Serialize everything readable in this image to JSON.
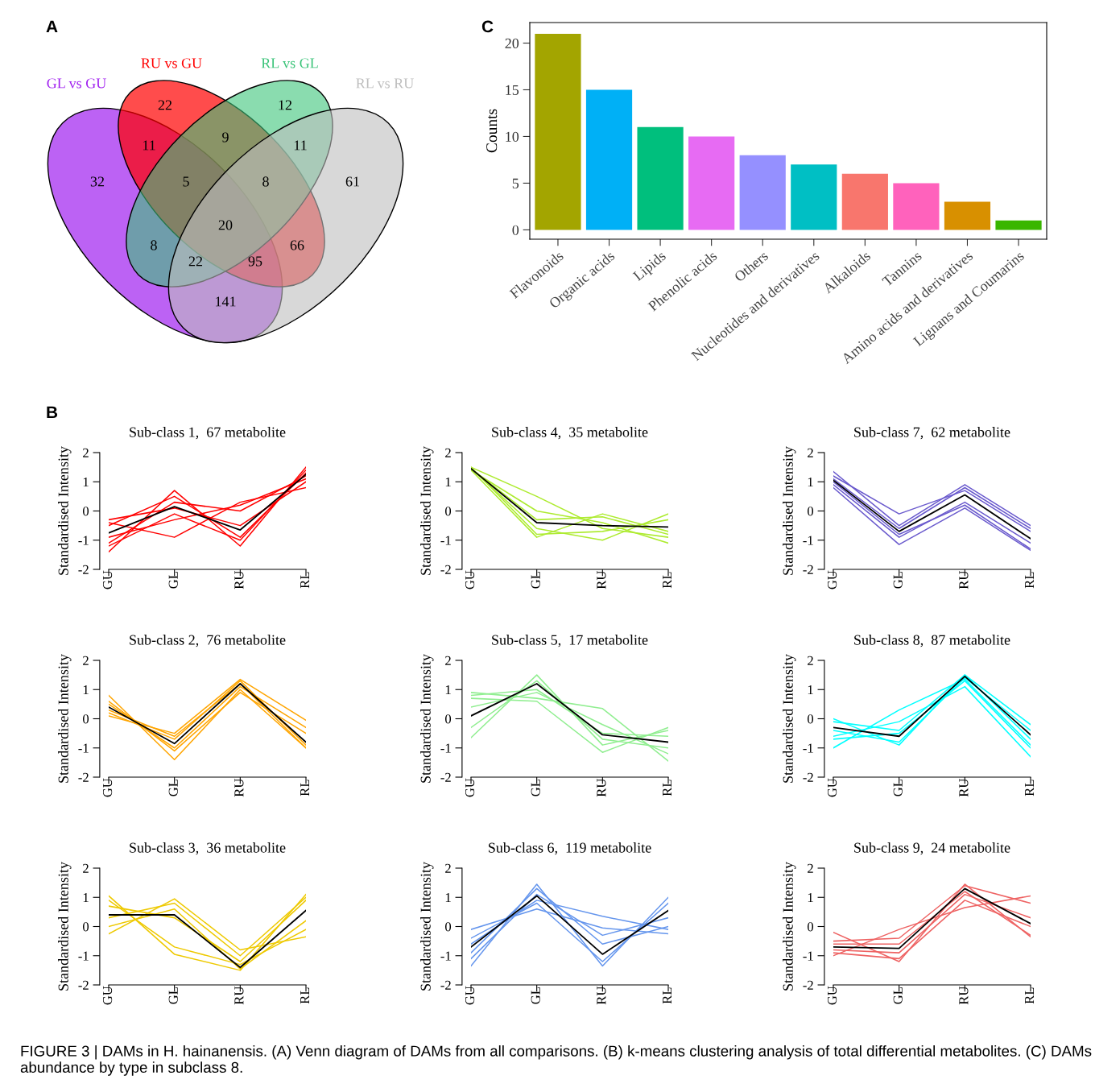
{
  "chart_data": [
    {
      "type": "other",
      "series": [
        {
          "name": "GL vs GU",
          "color": "#a020f0"
        },
        {
          "name": "RU vs GU",
          "color": "#ff0000"
        },
        {
          "name": "RL vs GL",
          "color": "#3cc47a"
        },
        {
          "name": "RL vs RU",
          "color": "#bebebe"
        }
      ],
      "annotations": [
        "A",
        "32",
        "22",
        "12",
        "61",
        "11",
        "9",
        "11",
        "5",
        "8",
        "20",
        "8",
        "66",
        "22",
        "95",
        "141",
        "FIGURE 3 | DAMs in H. hainanensis. (A) Venn diagram of DAMs from all comparisons. (B) k-means clustering analysis of total differential metabolites. (C) DAMs abundance by type in subclass 8."
      ]
    },
    {
      "type": "bar",
      "ylabel": "Counts",
      "annotations": [
        "C"
      ],
      "categories": [
        "Flavonoids",
        "Organic acids",
        "Lipids",
        "Phenolic acids",
        "Others",
        "Nucleotides and derivatives",
        "Alkaloids",
        "Tannins",
        "Amino acids and derivatives",
        "Lignans and Coumarins"
      ],
      "values": [
        21,
        15,
        11,
        10,
        8,
        7,
        6,
        5,
        3,
        1
      ],
      "colors": [
        "#a3a500",
        "#00b0f6",
        "#00bf7d",
        "#e76bf3",
        "#9590ff",
        "#00bfc4",
        "#f8766d",
        "#ff62bc",
        "#d89000",
        "#39b600"
      ],
      "ylim": [
        -1,
        22.2
      ],
      "yticks": [
        0,
        5,
        10,
        15,
        20
      ],
      "grid": false
    },
    {
      "type": "line",
      "title": "Sub-class 1,  67 metabolite",
      "ylabel": "Standardised Intensity",
      "annotations": [
        "B"
      ],
      "categories": [
        "GU",
        "GL",
        "RU",
        "RL"
      ],
      "ylim": [
        -2,
        2
      ],
      "yticks": [
        -2,
        -1,
        0,
        1,
        2
      ],
      "marker": "none",
      "series": [
        {
          "color": "#ff0000",
          "values": [
            -1.4,
            0.7,
            -1.2,
            1.5
          ]
        },
        {
          "color": "#ff0000",
          "values": [
            -0.4,
            -0.9,
            0.3,
            0.8
          ]
        },
        {
          "color": "#ff0000",
          "values": [
            -1.1,
            0.3,
            0.0,
            1.2
          ]
        },
        {
          "color": "#ff0000",
          "values": [
            -0.5,
            0.5,
            -0.9,
            1.3
          ]
        },
        {
          "color": "#ff0000",
          "values": [
            -0.9,
            -0.3,
            0.2,
            1.1
          ]
        },
        {
          "color": "#ff0000",
          "values": [
            -0.3,
            0.1,
            -0.5,
            1.0
          ]
        },
        {
          "color": "#ff0000",
          "values": [
            -1.2,
            -0.1,
            -1.0,
            1.4
          ]
        },
        {
          "color": "#000000",
          "values": [
            -0.75,
            0.15,
            -0.65,
            1.25
          ]
        }
      ]
    },
    {
      "type": "line",
      "title": "Sub-class 4,  35 metabolite",
      "ylabel": "Standardised Intensity",
      "categories": [
        "GU",
        "GL",
        "RU",
        "RL"
      ],
      "ylim": [
        -2,
        2
      ],
      "yticks": [
        -2,
        -1,
        0,
        1,
        2
      ],
      "marker": "none",
      "series": [
        {
          "color": "#adeb2f",
          "values": [
            1.5,
            0.5,
            -0.6,
            -0.9
          ]
        },
        {
          "color": "#adeb2f",
          "values": [
            1.4,
            -0.9,
            -0.1,
            -0.7
          ]
        },
        {
          "color": "#adeb2f",
          "values": [
            1.45,
            -0.6,
            -1.0,
            -0.1
          ]
        },
        {
          "color": "#adeb2f",
          "values": [
            1.4,
            0.0,
            -0.4,
            -1.1
          ]
        },
        {
          "color": "#adeb2f",
          "values": [
            1.5,
            -0.8,
            -0.7,
            -0.3
          ]
        },
        {
          "color": "#adeb2f",
          "values": [
            1.45,
            -0.3,
            -0.2,
            -0.8
          ]
        },
        {
          "color": "#000000",
          "values": [
            1.45,
            -0.4,
            -0.5,
            -0.55
          ]
        }
      ]
    },
    {
      "type": "line",
      "title": "Sub-class 7,  62 metabolite",
      "ylabel": "Standardised Intensity",
      "categories": [
        "GU",
        "GL",
        "RU",
        "RL"
      ],
      "ylim": [
        -2,
        2
      ],
      "yticks": [
        -2,
        -1,
        0,
        1,
        2
      ],
      "marker": "none",
      "series": [
        {
          "color": "#6a5acd",
          "values": [
            1.35,
            -0.5,
            0.9,
            -0.5
          ]
        },
        {
          "color": "#6a5acd",
          "values": [
            0.8,
            -1.15,
            0.1,
            -1.35
          ]
        },
        {
          "color": "#6a5acd",
          "values": [
            1.2,
            -0.1,
            0.7,
            -0.7
          ]
        },
        {
          "color": "#6a5acd",
          "values": [
            0.9,
            -0.9,
            0.3,
            -1.1
          ]
        },
        {
          "color": "#6a5acd",
          "values": [
            1.1,
            -0.6,
            0.8,
            -0.6
          ]
        },
        {
          "color": "#6a5acd",
          "values": [
            1.0,
            -0.8,
            0.2,
            -1.3
          ]
        },
        {
          "color": "#000000",
          "values": [
            1.05,
            -0.7,
            0.55,
            -0.95
          ]
        }
      ]
    },
    {
      "type": "line",
      "title": "Sub-class 2,  76 metabolite",
      "ylabel": "Standardised Intensity",
      "categories": [
        "GU",
        "GL",
        "RU",
        "RL"
      ],
      "ylim": [
        -2,
        2
      ],
      "yticks": [
        -2,
        -1,
        0,
        1,
        2
      ],
      "marker": "none",
      "series": [
        {
          "color": "#ffa500",
          "values": [
            0.8,
            -1.4,
            1.0,
            -1.0
          ]
        },
        {
          "color": "#ffa500",
          "values": [
            0.1,
            -0.5,
            1.35,
            -0.05
          ]
        },
        {
          "color": "#ffa500",
          "values": [
            0.6,
            -1.1,
            0.9,
            -0.5
          ]
        },
        {
          "color": "#ffa500",
          "values": [
            0.2,
            -0.7,
            1.3,
            -0.9
          ]
        },
        {
          "color": "#ffa500",
          "values": [
            0.5,
            -1.0,
            1.1,
            -0.3
          ]
        },
        {
          "color": "#ffa500",
          "values": [
            0.3,
            -0.6,
            1.2,
            -1.0
          ]
        },
        {
          "color": "#000000",
          "values": [
            0.4,
            -0.85,
            1.2,
            -0.8
          ]
        }
      ]
    },
    {
      "type": "line",
      "title": "Sub-class 5,  17 metabolite",
      "ylabel": "Standardised Intensity",
      "categories": [
        "GU",
        "GL",
        "RU",
        "RL"
      ],
      "ylim": [
        -2,
        2
      ],
      "yticks": [
        -2,
        -1,
        0,
        1,
        2
      ],
      "marker": "none",
      "series": [
        {
          "color": "#90ee90",
          "values": [
            0.9,
            0.7,
            0.35,
            -1.45
          ]
        },
        {
          "color": "#90ee90",
          "values": [
            -0.65,
            1.5,
            -0.9,
            -0.4
          ]
        },
        {
          "color": "#90ee90",
          "values": [
            0.7,
            0.6,
            -1.15,
            -0.3
          ]
        },
        {
          "color": "#90ee90",
          "values": [
            0.4,
            0.9,
            -0.2,
            -1.2
          ]
        },
        {
          "color": "#90ee90",
          "values": [
            -0.3,
            1.3,
            -0.7,
            -1.0
          ]
        },
        {
          "color": "#90ee90",
          "values": [
            0.8,
            1.0,
            -0.5,
            -0.6
          ]
        },
        {
          "color": "#000000",
          "values": [
            0.1,
            1.2,
            -0.55,
            -0.8
          ]
        }
      ]
    },
    {
      "type": "line",
      "title": "Sub-class 8,  87 metabolite",
      "ylabel": "Standardised Intensity",
      "categories": [
        "GU",
        "GL",
        "RU",
        "RL"
      ],
      "ylim": [
        -2,
        2
      ],
      "yticks": [
        -2,
        -1,
        0,
        1,
        2
      ],
      "marker": "none",
      "series": [
        {
          "color": "#00ffff",
          "values": [
            -1.0,
            0.3,
            1.35,
            -0.9
          ]
        },
        {
          "color": "#00ffff",
          "values": [
            0.0,
            -0.9,
            1.5,
            -0.2
          ]
        },
        {
          "color": "#00ffff",
          "values": [
            -0.6,
            -0.1,
            1.1,
            -1.3
          ]
        },
        {
          "color": "#00ffff",
          "values": [
            -0.4,
            -0.8,
            1.4,
            -0.4
          ]
        },
        {
          "color": "#00ffff",
          "values": [
            -0.1,
            -0.4,
            1.5,
            -0.7
          ]
        },
        {
          "color": "#00ffff",
          "values": [
            -0.7,
            -0.5,
            1.3,
            -1.0
          ]
        },
        {
          "color": "#000000",
          "values": [
            -0.3,
            -0.6,
            1.45,
            -0.55
          ]
        }
      ]
    },
    {
      "type": "line",
      "title": "Sub-class 3,  36 metabolite",
      "ylabel": "Standardised Intensity",
      "categories": [
        "GU",
        "GL",
        "RU",
        "RL"
      ],
      "ylim": [
        -2,
        2
      ],
      "yticks": [
        -2,
        -1,
        0,
        1,
        2
      ],
      "marker": "none",
      "series": [
        {
          "color": "#eec900",
          "values": [
            1.05,
            -0.95,
            -1.5,
            1.1
          ]
        },
        {
          "color": "#eec900",
          "values": [
            -0.25,
            0.95,
            -0.8,
            -0.35
          ]
        },
        {
          "color": "#eec900",
          "values": [
            0.7,
            0.3,
            -1.2,
            0.9
          ]
        },
        {
          "color": "#eec900",
          "values": [
            0.0,
            0.6,
            -1.45,
            0.2
          ]
        },
        {
          "color": "#eec900",
          "values": [
            0.9,
            -0.7,
            -1.3,
            -0.1
          ]
        },
        {
          "color": "#eec900",
          "values": [
            0.3,
            0.8,
            -1.0,
            1.0
          ]
        },
        {
          "color": "#000000",
          "values": [
            0.4,
            0.4,
            -1.4,
            0.55
          ]
        }
      ]
    },
    {
      "type": "line",
      "title": "Sub-class 6,  119 metabolite",
      "ylabel": "Standardised Intensity",
      "categories": [
        "GU",
        "GL",
        "RU",
        "RL"
      ],
      "ylim": [
        -2,
        2
      ],
      "yticks": [
        -2,
        -1,
        0,
        1,
        2
      ],
      "marker": "none",
      "series": [
        {
          "color": "#6495ed",
          "values": [
            -1.35,
            1.45,
            -1.35,
            1.0
          ]
        },
        {
          "color": "#6495ed",
          "values": [
            -0.1,
            0.6,
            -0.05,
            -0.25
          ]
        },
        {
          "color": "#6495ed",
          "values": [
            -0.9,
            1.3,
            -0.6,
            0.0
          ]
        },
        {
          "color": "#6495ed",
          "values": [
            -0.4,
            0.8,
            -1.2,
            0.8
          ]
        },
        {
          "color": "#6495ed",
          "values": [
            -1.1,
            1.1,
            -0.3,
            0.3
          ]
        },
        {
          "color": "#6495ed",
          "values": [
            -0.6,
            0.9,
            0.35,
            -0.1
          ]
        },
        {
          "color": "#000000",
          "values": [
            -0.7,
            1.05,
            -0.95,
            0.55
          ]
        }
      ]
    },
    {
      "type": "line",
      "title": "Sub-class 9,  24 metabolite",
      "ylabel": "Standardised Intensity",
      "categories": [
        "GU",
        "GL",
        "RU",
        "RL"
      ],
      "ylim": [
        -2,
        2
      ],
      "yticks": [
        -2,
        -1,
        0,
        1,
        2
      ],
      "marker": "none",
      "series": [
        {
          "color": "#ee6363",
          "values": [
            -0.2,
            -1.2,
            1.45,
            -0.35
          ]
        },
        {
          "color": "#ee6363",
          "values": [
            -1.0,
            -0.1,
            0.65,
            1.05
          ]
        },
        {
          "color": "#ee6363",
          "values": [
            -0.5,
            -0.4,
            1.4,
            0.8
          ]
        },
        {
          "color": "#ee6363",
          "values": [
            -0.9,
            -1.1,
            0.9,
            0.0
          ]
        },
        {
          "color": "#ee6363",
          "values": [
            -0.6,
            -0.6,
            1.2,
            -0.3
          ]
        },
        {
          "color": "#ee6363",
          "values": [
            -0.8,
            -0.9,
            1.1,
            0.3
          ]
        },
        {
          "color": "#000000",
          "values": [
            -0.7,
            -0.75,
            1.3,
            0.1
          ]
        }
      ]
    }
  ]
}
